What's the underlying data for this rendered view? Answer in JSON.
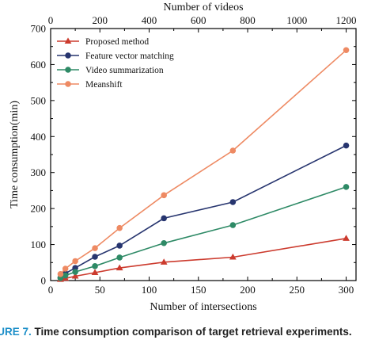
{
  "caption": {
    "label": "IGURE 7.",
    "text": "Time consumption comparison of target retrieval experiments."
  },
  "chart_data": {
    "type": "line",
    "xlabel": "Number of intersections",
    "ylabel": "Time consumption(min)",
    "top_xlabel": "Number of videos",
    "xlim": [
      0,
      310
    ],
    "ylim": [
      0,
      700
    ],
    "top_xlim": [
      0,
      1240
    ],
    "x_ticks": [
      0,
      50,
      100,
      150,
      200,
      250,
      300
    ],
    "y_ticks": [
      0,
      100,
      200,
      300,
      400,
      500,
      600,
      700
    ],
    "top_x_ticks": [
      0,
      200,
      400,
      600,
      800,
      1000,
      1200
    ],
    "x": [
      10,
      15,
      25,
      45,
      70,
      115,
      185,
      300
    ],
    "legend_position": "top-left",
    "grid": false,
    "series": [
      {
        "name": "Proposed method",
        "color": "#cc3b2e",
        "marker": "triangle",
        "values": [
          3,
          6,
          12,
          22,
          35,
          51,
          65,
          117
        ]
      },
      {
        "name": "Feature vector matching",
        "color": "#27356f",
        "marker": "circle",
        "values": [
          8,
          20,
          35,
          66,
          97,
          173,
          218,
          375
        ]
      },
      {
        "name": "Video summarization",
        "color": "#2e8a66",
        "marker": "circle",
        "values": [
          7,
          14,
          24,
          40,
          64,
          104,
          154,
          260
        ]
      },
      {
        "name": "Meanshift",
        "color": "#ee8a63",
        "marker": "circle",
        "values": [
          18,
          33,
          54,
          90,
          146,
          237,
          361,
          640
        ]
      }
    ]
  }
}
